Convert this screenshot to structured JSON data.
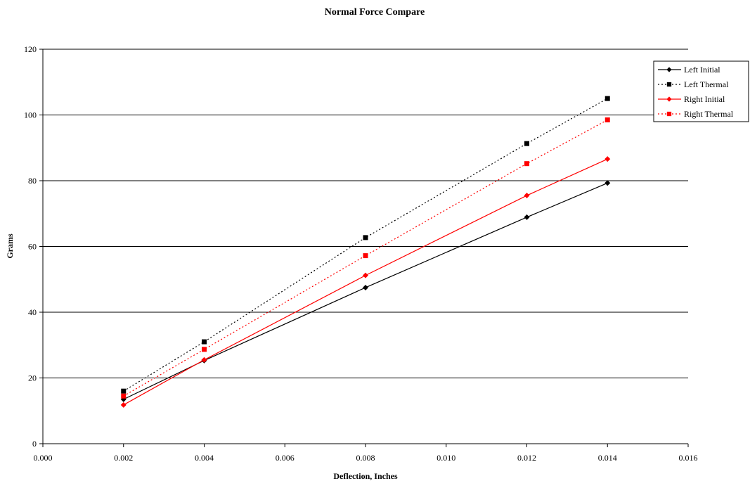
{
  "chart_data": {
    "type": "line",
    "title": "Normal Force Compare",
    "xlabel": "Deflection, Inches",
    "ylabel": "Grams",
    "xlim": [
      0,
      0.016
    ],
    "ylim": [
      0,
      120
    ],
    "x_ticks": [
      "0.000",
      "0.002",
      "0.004",
      "0.006",
      "0.008",
      "0.010",
      "0.012",
      "0.014",
      "0.016"
    ],
    "y_ticks": [
      "0",
      "20",
      "40",
      "60",
      "80",
      "100",
      "120"
    ],
    "grid": "horizontal",
    "legend_position": "top-right",
    "series": [
      {
        "name": "Left Initial",
        "color": "#000000",
        "line_style": "solid",
        "marker": "diamond",
        "x": [
          0.002,
          0.004,
          0.008,
          0.012,
          0.014
        ],
        "y": [
          13.5,
          25.3,
          47.5,
          68.9,
          79.3
        ]
      },
      {
        "name": "Left Thermal",
        "color": "#000000",
        "line_style": "dotted",
        "marker": "square",
        "x": [
          0.002,
          0.004,
          0.008,
          0.012,
          0.014
        ],
        "y": [
          16.0,
          31.0,
          62.7,
          91.3,
          105.0
        ]
      },
      {
        "name": "Right Initial",
        "color": "#ff0000",
        "line_style": "solid",
        "marker": "diamond",
        "x": [
          0.002,
          0.004,
          0.008,
          0.012,
          0.014
        ],
        "y": [
          11.8,
          25.5,
          51.2,
          75.5,
          86.6
        ]
      },
      {
        "name": "Right Thermal",
        "color": "#ff0000",
        "line_style": "dotted",
        "marker": "square",
        "x": [
          0.002,
          0.004,
          0.008,
          0.012,
          0.014
        ],
        "y": [
          14.5,
          28.7,
          57.2,
          85.2,
          98.5
        ]
      }
    ]
  }
}
